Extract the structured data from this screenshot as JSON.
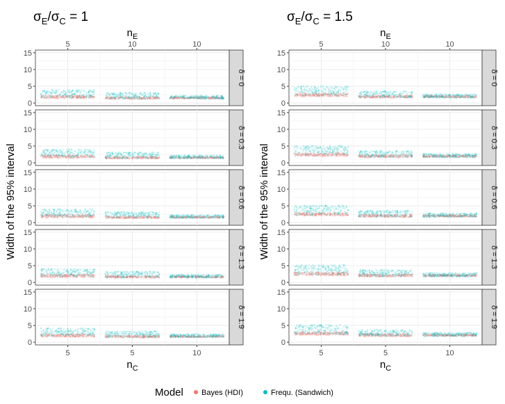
{
  "chart_data": [
    {
      "type": "scatter",
      "title_parts": {
        "sigma": "σ",
        "sub_E": "E",
        "sub_C": "C",
        "value": "1"
      },
      "title": "σE/σC = 1",
      "ylabel": "Width of the 95% interval",
      "xlabel_bottom": {
        "base": "n",
        "sub": "C"
      },
      "xlabel_top": {
        "base": "n",
        "sub": "E"
      },
      "top_ticks": [
        "5",
        "10",
        "10"
      ],
      "bottom_ticks": [
        "5",
        "5",
        "10"
      ],
      "ylim": [
        -0.8,
        15.8
      ],
      "yticks": [
        0,
        5,
        10,
        15
      ],
      "facets": [
        "δ = 0",
        "δ = 0.3",
        "δ = 0.6",
        "δ = 1.3",
        "δ = 1.9"
      ],
      "groups": [
        {
          "bayes_mean": 1.8,
          "bayes_spread": 0.9,
          "freq_mean": 2.8,
          "freq_spread": 2.4
        },
        {
          "bayes_mean": 1.5,
          "bayes_spread": 0.7,
          "freq_mean": 2.2,
          "freq_spread": 1.9
        },
        {
          "bayes_mean": 1.5,
          "bayes_spread": 0.5,
          "freq_mean": 1.7,
          "freq_spread": 1.0
        }
      ]
    },
    {
      "type": "scatter",
      "title_parts": {
        "sigma": "σ",
        "sub_E": "E",
        "sub_C": "C",
        "value": "1.5"
      },
      "title": "σE/σC = 1.5",
      "ylabel": "Width of the 95% interval",
      "xlabel_bottom": {
        "base": "n",
        "sub": "C"
      },
      "xlabel_top": {
        "base": "n",
        "sub": "E"
      },
      "top_ticks": [
        "5",
        "10",
        "10"
      ],
      "bottom_ticks": [
        "5",
        "5",
        "10"
      ],
      "ylim": [
        -0.8,
        15.8
      ],
      "yticks": [
        0,
        5,
        10,
        15
      ],
      "facets": [
        "δ = 0",
        "δ = 0.3",
        "δ = 0.6",
        "δ = 1.3",
        "δ = 1.9"
      ],
      "groups": [
        {
          "bayes_mean": 2.4,
          "bayes_spread": 1.0,
          "freq_mean": 3.6,
          "freq_spread": 3.0
        },
        {
          "bayes_mean": 1.9,
          "bayes_spread": 0.8,
          "freq_mean": 2.6,
          "freq_spread": 2.0
        },
        {
          "bayes_mean": 1.9,
          "bayes_spread": 0.6,
          "freq_mean": 2.1,
          "freq_spread": 1.2
        }
      ]
    }
  ],
  "legend": {
    "title": "Model",
    "items": [
      {
        "label": "Bayes (HDI)",
        "color": "#f8766d"
      },
      {
        "label": "Frequ. (Sandwich)",
        "color": "#00bfc4"
      }
    ]
  },
  "colors": {
    "bayes": "#f8766d",
    "freq": "#00bfc4",
    "strip": "#d9d9d9",
    "grid": "#ebebeb"
  }
}
